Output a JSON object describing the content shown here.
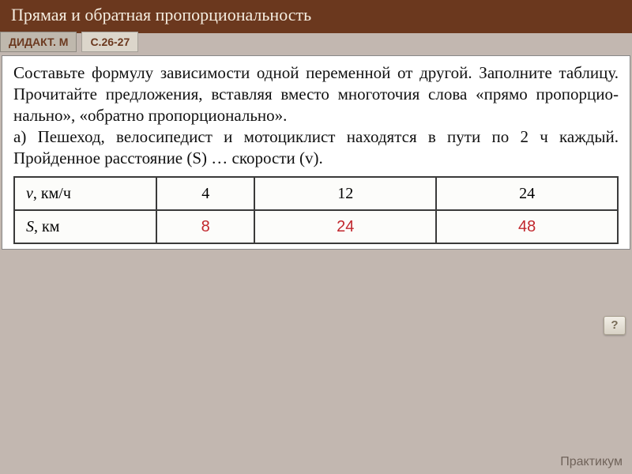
{
  "header": {
    "title": "Прямая и обратная пропорциональность"
  },
  "tags": {
    "left": "ДИДАКТ. М",
    "right": "С.26-27"
  },
  "task_paragraphs": [
    "Составьте формулу зависимости одной переменной от другой. Заполните таблицу. Прочитайте предложения, вставляя вместо многоточия слова «прямо пропорцио­нально», «обратно пропорционально».",
    "а) Пешеход, велосипедист и мотоциклист находятся в пути по 2 ч каждый. Пройденное расстояние (S) … ско­рости (v)."
  ],
  "data_table": {
    "row1_var": "v",
    "row1_unit": ", км/ч",
    "row2_var": "S",
    "row2_unit": ", км",
    "v": [
      "4",
      "12",
      "24"
    ],
    "s": [
      "8",
      "24",
      "48"
    ]
  },
  "help": "?",
  "footer": "Практикум"
}
